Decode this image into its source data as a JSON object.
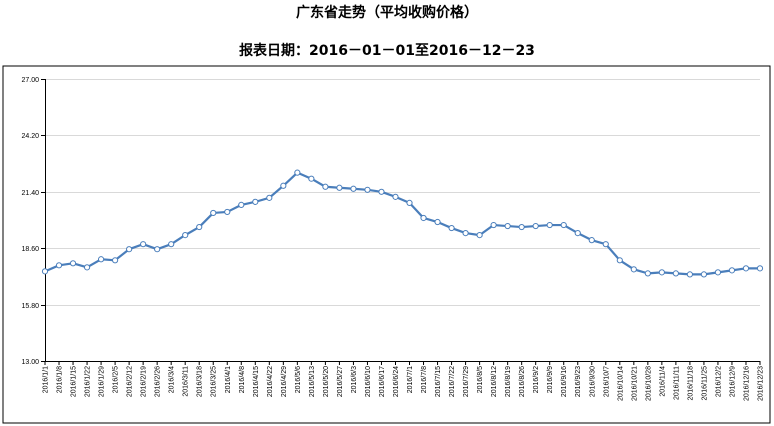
{
  "chart_data": {
    "type": "line",
    "title": "广东省走势（平均收购价格）",
    "subtitle": "报表日期：2016－01－01至2016－12－23",
    "xlabel": "",
    "ylabel": "",
    "ylim": [
      13.0,
      27.0
    ],
    "yticks": [
      "13.00",
      "15.80",
      "18.60",
      "21.40",
      "24.20",
      "27.00"
    ],
    "grid": true,
    "legend": "none",
    "colors": {
      "line": "#4a7ebb",
      "grid": "#d9d9d9",
      "axis": "#000000"
    },
    "x": [
      "2016/1/1",
      "2016/1/8",
      "2016/1/15",
      "2016/1/22",
      "2016/1/29",
      "2016/2/5",
      "2016/2/12",
      "2016/2/19",
      "2016/2/26",
      "2016/3/4",
      "2016/3/11",
      "2016/3/18",
      "2016/3/25",
      "2016/4/1",
      "2016/4/8",
      "2016/4/15",
      "2016/4/22",
      "2016/4/29",
      "2016/5/6",
      "2016/5/13",
      "2016/5/20",
      "2016/5/27",
      "2016/6/3",
      "2016/6/10",
      "2016/6/17",
      "2016/6/24",
      "2016/7/1",
      "2016/7/8",
      "2016/7/15",
      "2016/7/22",
      "2016/7/29",
      "2016/8/5",
      "2016/8/12",
      "2016/8/19",
      "2016/8/26",
      "2016/9/2",
      "2016/9/9",
      "2016/9/16",
      "2016/9/23",
      "2016/9/30",
      "2016/10/7",
      "2016/10/14",
      "2016/10/21",
      "2016/10/28",
      "2016/11/4",
      "2016/11/11",
      "2016/11/18",
      "2016/11/25",
      "2016/12/2",
      "2016/12/9",
      "2016/12/16",
      "2016/12/23"
    ],
    "series": [
      {
        "values": [
          17.45,
          17.75,
          17.85,
          17.65,
          18.05,
          18.0,
          18.55,
          18.8,
          18.55,
          18.8,
          19.25,
          19.65,
          20.35,
          20.4,
          20.75,
          20.9,
          21.1,
          21.7,
          22.35,
          22.05,
          21.65,
          21.6,
          21.55,
          21.5,
          21.4,
          21.15,
          20.85,
          20.1,
          19.9,
          19.6,
          19.35,
          19.25,
          19.75,
          19.7,
          19.65,
          19.7,
          19.75,
          19.75,
          19.35,
          19.0,
          18.8,
          18.0,
          17.55,
          17.35,
          17.4,
          17.35,
          17.3,
          17.3,
          17.4,
          17.5,
          17.6,
          17.6
        ]
      }
    ]
  }
}
